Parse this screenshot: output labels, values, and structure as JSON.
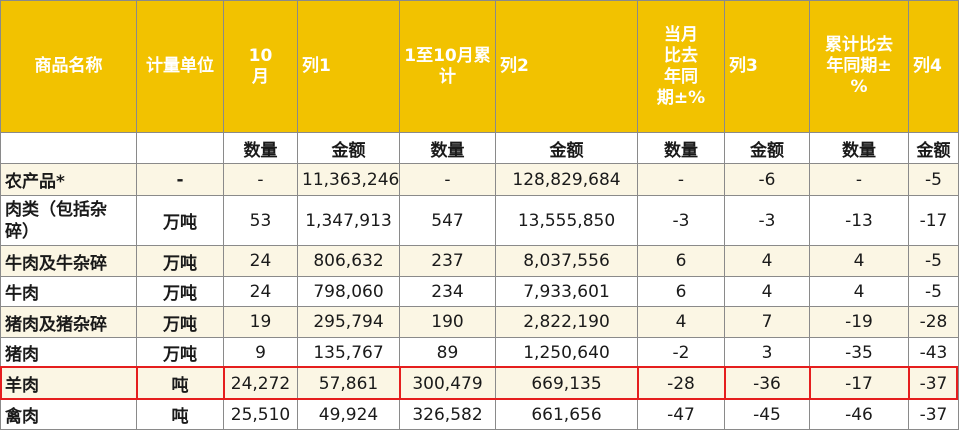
{
  "header": [
    "商品名称",
    "计量单位",
    "10月",
    "列1",
    "1至10月累计",
    "列2",
    "当月比去年同期±%",
    "列3",
    "累计比去年同期±%",
    "列4"
  ],
  "subheader": [
    "",
    "",
    "数量",
    "金额",
    "数量",
    "金额",
    "数量",
    "金额",
    "数量",
    "金额"
  ],
  "rows": [
    {
      "name": "农产品*",
      "unit": "-",
      "qty": "-",
      "amt": "11,363,246",
      "cum_qty": "-",
      "cum_amt": "128,829,684",
      "m_qty": "-",
      "m_amt": "-6",
      "c_qty": "-",
      "c_amt": "-5"
    },
    {
      "name": "肉类（包括杂碎）",
      "unit": "万吨",
      "qty": "53",
      "amt": "1,347,913",
      "cum_qty": "547",
      "cum_amt": "13,555,850",
      "m_qty": "-3",
      "m_amt": "-3",
      "c_qty": "-13",
      "c_amt": "-17"
    },
    {
      "name": "牛肉及牛杂碎",
      "unit": "万吨",
      "qty": "24",
      "amt": "806,632",
      "cum_qty": "237",
      "cum_amt": "8,037,556",
      "m_qty": "6",
      "m_amt": "4",
      "c_qty": "4",
      "c_amt": "-5"
    },
    {
      "name": "牛肉",
      "unit": "万吨",
      "qty": "24",
      "amt": "798,060",
      "cum_qty": "234",
      "cum_amt": "7,933,601",
      "m_qty": "6",
      "m_amt": "4",
      "c_qty": "4",
      "c_amt": "-5"
    },
    {
      "name": "猪肉及猪杂碎",
      "unit": "万吨",
      "qty": "19",
      "amt": "295,794",
      "cum_qty": "190",
      "cum_amt": "2,822,190",
      "m_qty": "4",
      "m_amt": "7",
      "c_qty": "-19",
      "c_amt": "-28"
    },
    {
      "name": "猪肉",
      "unit": "万吨",
      "qty": "9",
      "amt": "135,767",
      "cum_qty": "89",
      "cum_amt": "1,250,640",
      "m_qty": "-2",
      "m_amt": "3",
      "c_qty": "-35",
      "c_amt": "-43"
    },
    {
      "name": "羊肉",
      "unit": "吨",
      "qty": "24,272",
      "amt": "57,861",
      "cum_qty": "300,479",
      "cum_amt": "669,135",
      "m_qty": "-28",
      "m_amt": "-36",
      "c_qty": "-17",
      "c_amt": "-37"
    },
    {
      "name": "禽肉",
      "unit": "吨",
      "qty": "25,510",
      "amt": "49,924",
      "cum_qty": "326,582",
      "cum_amt": "661,656",
      "m_qty": "-47",
      "m_amt": "-45",
      "c_qty": "-46",
      "c_amt": "-37"
    }
  ]
}
